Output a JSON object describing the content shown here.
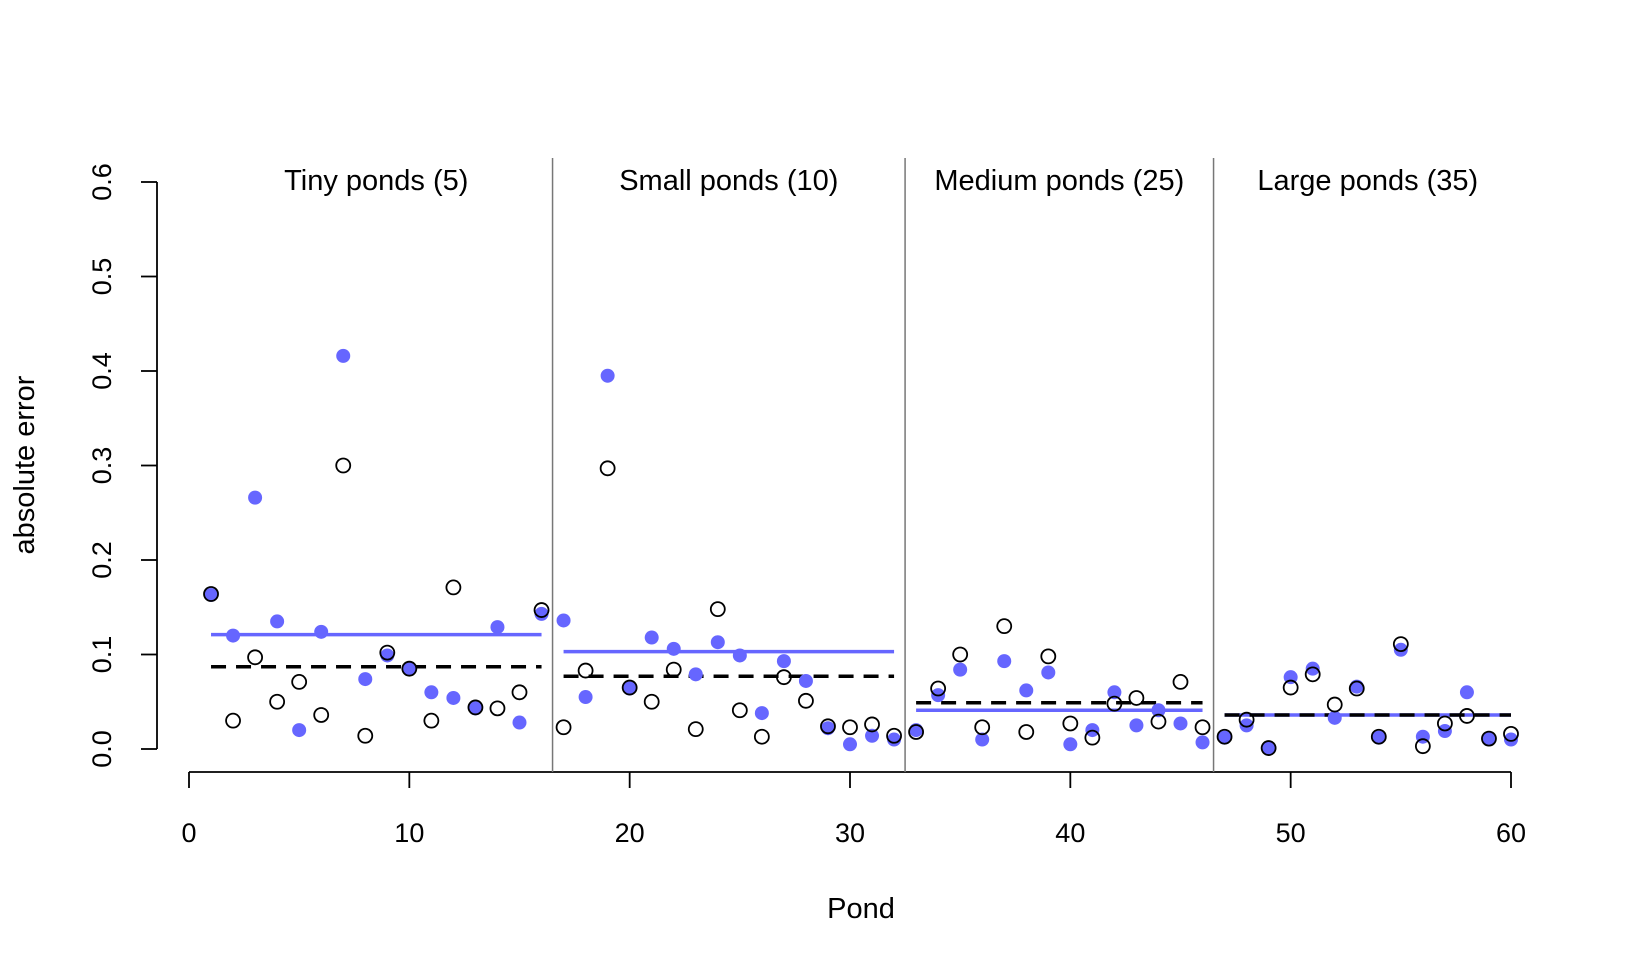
{
  "chart_data": {
    "type": "scatter",
    "xlabel": "Pond",
    "ylabel": "absolute error",
    "xlim": [
      0,
      60
    ],
    "ylim": [
      0,
      0.6
    ],
    "x_ticks": [
      "0",
      "10",
      "20",
      "30",
      "40",
      "50",
      "60"
    ],
    "y_ticks": [
      "0.0",
      "0.1",
      "0.2",
      "0.3",
      "0.4",
      "0.5",
      "0.6"
    ],
    "groups": [
      {
        "label": "Tiny ponds (5)",
        "x_start": 1,
        "x_end": 16,
        "mean_filled": 0.121,
        "mean_open": 0.087
      },
      {
        "label": "Small ponds (10)",
        "x_start": 17,
        "x_end": 32,
        "mean_filled": 0.103,
        "mean_open": 0.077
      },
      {
        "label": "Medium ponds (25)",
        "x_start": 33,
        "x_end": 46,
        "mean_filled": 0.041,
        "mean_open": 0.049
      },
      {
        "label": "Large ponds (35)",
        "x_start": 47,
        "x_end": 60,
        "mean_filled": 0.036,
        "mean_open": 0.036
      }
    ],
    "group_dividers": [
      16.5,
      32.5,
      46.5
    ],
    "colors": {
      "filled": "#6666ff",
      "open": "#000000",
      "divider": "#777777"
    },
    "series": [
      {
        "style": "filled",
        "x": [
          1,
          2,
          3,
          4,
          5,
          6,
          7,
          8,
          9,
          10,
          11,
          12,
          13,
          14,
          15,
          16,
          17,
          18,
          19,
          20,
          21,
          22,
          23,
          24,
          25,
          26,
          27,
          28,
          29,
          30,
          31,
          32,
          33,
          34,
          35,
          36,
          37,
          38,
          39,
          40,
          41,
          42,
          43,
          44,
          45,
          46,
          47,
          48,
          49,
          50,
          51,
          52,
          53,
          54,
          55,
          56,
          57,
          58,
          59,
          60
        ],
        "values": [
          0.163,
          0.12,
          0.266,
          0.135,
          0.02,
          0.124,
          0.416,
          0.074,
          0.099,
          0.085,
          0.06,
          0.054,
          0.043,
          0.129,
          0.028,
          0.143,
          0.136,
          0.055,
          0.395,
          0.064,
          0.118,
          0.106,
          0.079,
          0.113,
          0.099,
          0.038,
          0.093,
          0.072,
          0.022,
          0.005,
          0.014,
          0.01,
          0.02,
          0.057,
          0.084,
          0.01,
          0.093,
          0.062,
          0.081,
          0.005,
          0.02,
          0.06,
          0.025,
          0.041,
          0.027,
          0.007,
          0.012,
          0.025,
          0.001,
          0.076,
          0.085,
          0.033,
          0.066,
          0.012,
          0.105,
          0.013,
          0.019,
          0.06,
          0.011,
          0.01
        ]
      },
      {
        "style": "open",
        "x": [
          1,
          2,
          3,
          4,
          5,
          6,
          7,
          8,
          9,
          10,
          11,
          12,
          13,
          14,
          15,
          16,
          17,
          18,
          19,
          20,
          21,
          22,
          23,
          24,
          25,
          26,
          27,
          28,
          29,
          30,
          31,
          32,
          33,
          34,
          35,
          36,
          37,
          38,
          39,
          40,
          41,
          42,
          43,
          44,
          45,
          46,
          47,
          48,
          49,
          50,
          51,
          52,
          53,
          54,
          55,
          56,
          57,
          58,
          59,
          60
        ],
        "values": [
          0.164,
          0.03,
          0.097,
          0.05,
          0.071,
          0.036,
          0.3,
          0.014,
          0.102,
          0.085,
          0.03,
          0.171,
          0.044,
          0.043,
          0.06,
          0.147,
          0.023,
          0.083,
          0.297,
          0.065,
          0.05,
          0.084,
          0.021,
          0.148,
          0.041,
          0.013,
          0.076,
          0.051,
          0.024,
          0.023,
          0.026,
          0.014,
          0.018,
          0.064,
          0.1,
          0.023,
          0.13,
          0.018,
          0.098,
          0.027,
          0.012,
          0.048,
          0.054,
          0.029,
          0.071,
          0.023,
          0.013,
          0.031,
          0.001,
          0.065,
          0.079,
          0.047,
          0.064,
          0.013,
          0.111,
          0.003,
          0.027,
          0.035,
          0.011,
          0.016
        ]
      }
    ]
  }
}
